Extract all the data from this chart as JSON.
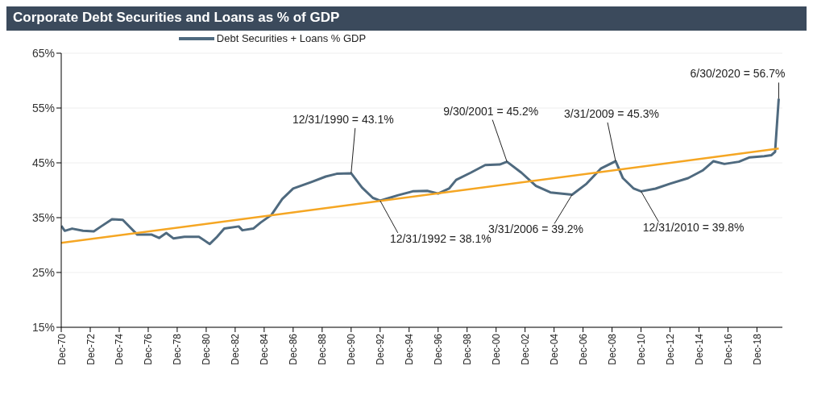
{
  "chart_data": {
    "type": "line",
    "title": "Corporate Debt Securities and Loans as % of GDP",
    "x": [
      "1970-12",
      "1971-03",
      "1971-09",
      "1972-06",
      "1973-03",
      "1973-09",
      "1974-06",
      "1975-03",
      "1976-03",
      "1977-03",
      "1977-09",
      "1978-03",
      "1978-09",
      "1979-06",
      "1980-06",
      "1981-03",
      "1981-09",
      "1982-03",
      "1983-03",
      "1983-06",
      "1984-03",
      "1984-09",
      "1985-06",
      "1986-03",
      "1986-12",
      "1988-03",
      "1989-03",
      "1989-12",
      "1990-12",
      "1991-09",
      "1992-06",
      "1992-12",
      "1993-06",
      "1994-03",
      "1995-03",
      "1996-03",
      "1996-12",
      "1997-09",
      "1998-03",
      "1999-03",
      "2000-03",
      "2001-03",
      "2001-09",
      "2002-09",
      "2003-09",
      "2004-09",
      "2006-03",
      "2007-03",
      "2008-03",
      "2009-03",
      "2009-09",
      "2010-06",
      "2010-12",
      "2011-12",
      "2012-12",
      "2014-03",
      "2015-03",
      "2015-12",
      "2016-09",
      "2017-09",
      "2018-06",
      "2019-06",
      "2019-12",
      "2020-03",
      "2020-06"
    ],
    "series": [
      {
        "name": "Debt Securities + Loans % GDP",
        "color": "#4f6a7f",
        "values": [
          33.5,
          32.6,
          33.0,
          32.6,
          32.5,
          33.4,
          34.7,
          34.6,
          31.9,
          31.9,
          31.3,
          32.2,
          31.2,
          31.5,
          31.5,
          30.2,
          31.5,
          33.0,
          33.4,
          32.7,
          33.0,
          34.1,
          35.5,
          38.4,
          40.3,
          41.5,
          42.5,
          43.0,
          43.1,
          40.5,
          38.6,
          38.1,
          38.5,
          39.1,
          39.8,
          39.9,
          39.4,
          40.3,
          41.9,
          43.2,
          44.6,
          44.7,
          45.2,
          43.2,
          40.8,
          39.6,
          39.2,
          41.2,
          44.0,
          45.3,
          42.2,
          40.3,
          39.8,
          40.3,
          41.2,
          42.2,
          43.6,
          45.3,
          44.8,
          45.2,
          46.0,
          46.2,
          46.4,
          47.0,
          56.7
        ]
      },
      {
        "type": "line",
        "color": "#f5a623",
        "x": [
          "1970-12",
          "2020-06"
        ],
        "values": [
          30.4,
          47.6
        ]
      }
    ],
    "xlim": [
      "1970-12",
      "2020-09"
    ],
    "xticks": [
      {
        "value": "1970-12",
        "label": "Dec-70"
      },
      {
        "value": "1972-12",
        "label": "Dec-72"
      },
      {
        "value": "1974-12",
        "label": "Dec-74"
      },
      {
        "value": "1976-12",
        "label": "Dec-76"
      },
      {
        "value": "1978-12",
        "label": "Dec-78"
      },
      {
        "value": "1980-12",
        "label": "Dec-80"
      },
      {
        "value": "1982-12",
        "label": "Dec-82"
      },
      {
        "value": "1984-12",
        "label": "Dec-84"
      },
      {
        "value": "1986-12",
        "label": "Dec-86"
      },
      {
        "value": "1988-12",
        "label": "Dec-88"
      },
      {
        "value": "1990-12",
        "label": "Dec-90"
      },
      {
        "value": "1992-12",
        "label": "Dec-92"
      },
      {
        "value": "1994-12",
        "label": "Dec-94"
      },
      {
        "value": "1996-12",
        "label": "Dec-96"
      },
      {
        "value": "1998-12",
        "label": "Dec-98"
      },
      {
        "value": "2000-12",
        "label": "Dec-00"
      },
      {
        "value": "2002-12",
        "label": "Dec-02"
      },
      {
        "value": "2004-12",
        "label": "Dec-04"
      },
      {
        "value": "2006-12",
        "label": "Dec-06"
      },
      {
        "value": "2008-12",
        "label": "Dec-08"
      },
      {
        "value": "2010-12",
        "label": "Dec-10"
      },
      {
        "value": "2012-12",
        "label": "Dec-12"
      },
      {
        "value": "2014-12",
        "label": "Dec-14"
      },
      {
        "value": "2016-12",
        "label": "Dec-16"
      },
      {
        "value": "2018-12",
        "label": "Dec-18"
      }
    ],
    "ylim": [
      15,
      65
    ],
    "yticks": [
      {
        "value": 15,
        "label": "15%"
      },
      {
        "value": 25,
        "label": "25%"
      },
      {
        "value": 35,
        "label": "35%"
      },
      {
        "value": 45,
        "label": "45%"
      },
      {
        "value": 55,
        "label": "55%"
      },
      {
        "value": 65,
        "label": "65%"
      }
    ],
    "grid": "y",
    "legend": "top",
    "marker": "none",
    "line_style": "solid",
    "annotations": [
      {
        "text": "12/31/1990 = 43.1%",
        "x": "1990-12",
        "y": 43.1
      },
      {
        "text": "12/31/1992 = 38.1%",
        "x": "1992-12",
        "y": 38.1
      },
      {
        "text": "9/30/2001 = 45.2%",
        "x": "2001-09",
        "y": 45.2
      },
      {
        "text": "3/31/2006 = 39.2%",
        "x": "2006-03",
        "y": 39.2
      },
      {
        "text": "3/31/2009 = 45.3%",
        "x": "2009-03",
        "y": 45.3
      },
      {
        "text": "12/31/2010 = 39.8%",
        "x": "2010-12",
        "y": 39.8
      },
      {
        "text": "6/30/2020 = 56.7%",
        "x": "2020-06",
        "y": 56.7
      }
    ]
  }
}
